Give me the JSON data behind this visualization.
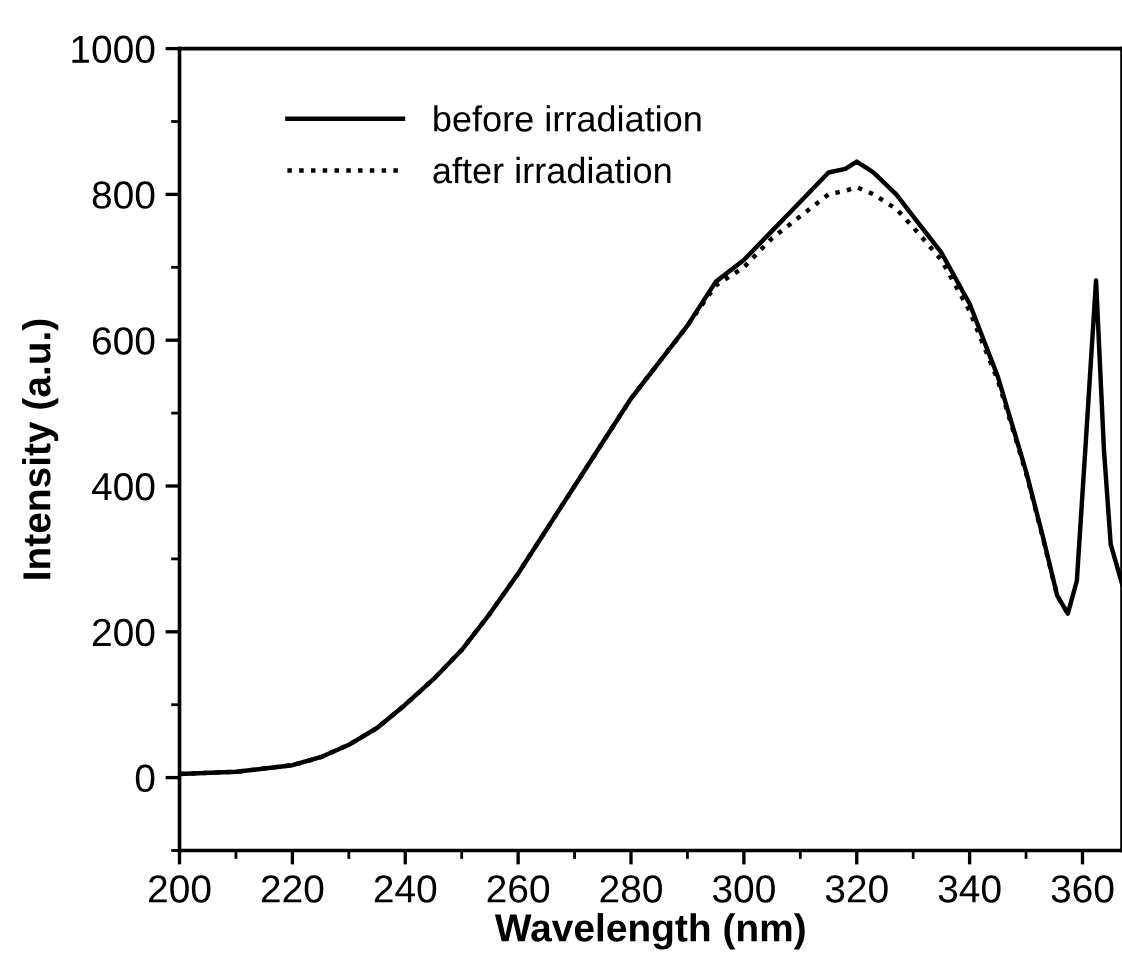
{
  "chart_data": {
    "type": "line",
    "xlabel": "Wavelength (nm)",
    "ylabel": "Intensity (a.u.)",
    "xlim": [
      200,
      367
    ],
    "ylim": [
      -100,
      1000
    ],
    "xticks": [
      200,
      {
        "value": 210,
        "label": null
      },
      220,
      {
        "value": 230,
        "label": null
      },
      240,
      {
        "value": 250,
        "label": null
      },
      260,
      {
        "value": 270,
        "label": null
      },
      280,
      {
        "value": 290,
        "label": null
      },
      300,
      {
        "value": 310,
        "label": null
      },
      320,
      {
        "value": 330,
        "label": null
      },
      340,
      {
        "value": 350,
        "label": null
      },
      360
    ],
    "yticks": [
      {
        "value": -100,
        "label": null
      },
      0,
      {
        "value": 100,
        "label": null
      },
      200,
      {
        "value": 300,
        "label": null
      },
      400,
      {
        "value": 500,
        "label": null
      },
      600,
      {
        "value": 700,
        "label": null
      },
      800,
      {
        "value": 900,
        "label": null
      },
      1000
    ],
    "legend": "top left",
    "grid": false,
    "series": [
      {
        "name": "before irradiation",
        "color": "#000000",
        "line_style": "solid",
        "x": [
          200,
          210,
          220,
          225,
          230,
          235,
          240,
          245,
          250,
          255,
          260,
          265,
          270,
          275,
          280,
          285,
          290,
          295,
          300,
          305,
          310,
          315,
          318,
          320,
          323,
          327,
          330,
          335,
          340,
          345,
          350,
          353,
          355.5,
          357.4,
          359,
          360.5,
          362.4,
          363.8,
          365,
          367
        ],
        "values": [
          5,
          8,
          17,
          28,
          45,
          68,
          100,
          135,
          175,
          225,
          280,
          340,
          400,
          460,
          520,
          570,
          620,
          680,
          710,
          750,
          790,
          830,
          835,
          845,
          830,
          800,
          770,
          720,
          650,
          550,
          420,
          330,
          250,
          225,
          270,
          450,
          682,
          450,
          320,
          266
        ]
      },
      {
        "name": "after irradiation",
        "color": "#000000",
        "line_style": "dotted",
        "x": [
          200,
          210,
          220,
          225,
          230,
          235,
          240,
          245,
          250,
          255,
          260,
          265,
          270,
          275,
          280,
          285,
          290,
          295,
          300,
          305,
          310,
          315,
          318,
          320,
          323,
          327,
          330,
          335,
          340,
          345,
          350,
          353,
          355.5,
          357.4
        ],
        "values": [
          5,
          8,
          17,
          28,
          45,
          68,
          100,
          135,
          175,
          225,
          280,
          340,
          400,
          460,
          520,
          570,
          620,
          675,
          700,
          740,
          770,
          800,
          805,
          810,
          800,
          780,
          755,
          710,
          640,
          545,
          418,
          328,
          250,
          225
        ]
      }
    ]
  }
}
